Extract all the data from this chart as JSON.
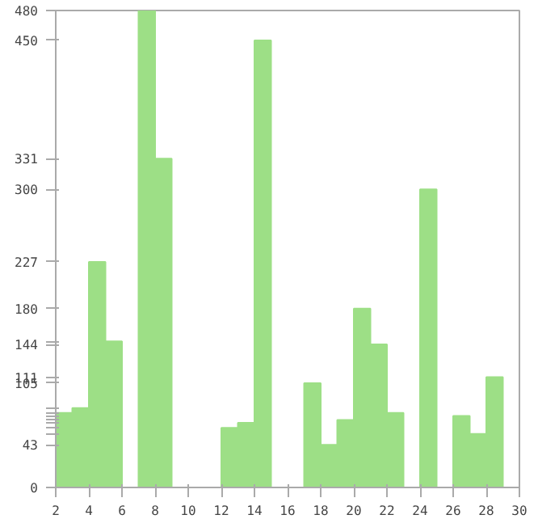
{
  "chart_data": {
    "type": "histogram",
    "bins": [
      2,
      3,
      4,
      5,
      6,
      7,
      8,
      9,
      10,
      11,
      12,
      13,
      14,
      15,
      16,
      17,
      18,
      19,
      20,
      21,
      22,
      23,
      24,
      25,
      26,
      27,
      28,
      29,
      30
    ],
    "values": [
      75,
      80,
      227,
      147,
      0,
      480,
      331,
      0,
      0,
      0,
      60,
      65,
      450,
      0,
      0,
      105,
      43,
      68,
      180,
      144,
      75,
      0,
      300,
      0,
      72,
      54,
      111,
      0
    ],
    "color": "#9ddf86",
    "xlim": [
      2,
      30
    ],
    "xticks": [
      2,
      4,
      6,
      8,
      10,
      12,
      14,
      16,
      18,
      20,
      22,
      24,
      26,
      28,
      30
    ],
    "ylim": [
      0,
      480
    ],
    "yticks": [
      0,
      43,
      {
        "value": 54,
        "label": null
      },
      {
        "value": 60,
        "label": null
      },
      {
        "value": 65,
        "label": null
      },
      {
        "value": 68,
        "label": null
      },
      {
        "value": 72,
        "label": null
      },
      {
        "value": 75,
        "label": null
      },
      {
        "value": 80,
        "label": null
      },
      105,
      111,
      144,
      {
        "value": 147,
        "label": null
      },
      180,
      227,
      300,
      331,
      450,
      480
    ],
    "grid": false
  }
}
